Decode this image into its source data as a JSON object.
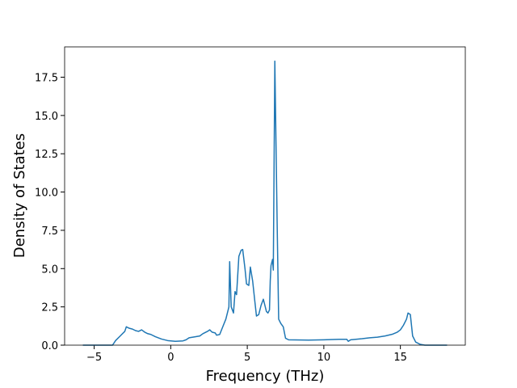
{
  "chart_data": {
    "type": "line",
    "xlabel": "Frequency (THz)",
    "ylabel": "Density of States",
    "xlim": [
      -6.93,
      19.24
    ],
    "ylim": [
      0,
      19.48
    ],
    "xticks": [
      {
        "value": -5,
        "label": "−5"
      },
      0,
      5,
      10,
      15
    ],
    "yticks": [
      {
        "value": 0,
        "label": "0.0"
      },
      {
        "value": 2.5,
        "label": "2.5"
      },
      {
        "value": 5,
        "label": "5.0"
      },
      {
        "value": 7.5,
        "label": "7.5"
      },
      {
        "value": 10,
        "label": "10.0"
      },
      {
        "value": 12.5,
        "label": "12.5"
      },
      {
        "value": 15,
        "label": "15.0"
      },
      {
        "value": 17.5,
        "label": "17.5"
      }
    ],
    "series": [
      {
        "color": "#1f77b4",
        "x": [
          -5.74,
          -3.8,
          -3.6,
          -3.3,
          -3.0,
          -2.9,
          -2.7,
          -2.5,
          -2.3,
          -2.1,
          -1.9,
          -1.7,
          -1.5,
          -1.3,
          -1.0,
          -0.6,
          -0.2,
          0.3,
          0.8,
          1.0,
          1.2,
          1.6,
          1.9,
          2.1,
          2.4,
          2.55,
          2.7,
          2.9,
          3.0,
          3.2,
          3.4,
          3.6,
          3.8,
          3.85,
          3.95,
          4.1,
          4.2,
          4.3,
          4.45,
          4.6,
          4.7,
          4.85,
          4.95,
          5.1,
          5.2,
          5.35,
          5.5,
          5.6,
          5.75,
          5.9,
          6.05,
          6.15,
          6.25,
          6.35,
          6.45,
          6.5,
          6.55,
          6.65,
          6.7,
          6.8,
          6.95,
          7.05,
          7.2,
          7.35,
          7.5,
          7.7,
          9.0,
          10.0,
          11.0,
          11.5,
          11.6,
          11.75,
          12.5,
          13.0,
          13.5,
          14.0,
          14.5,
          14.8,
          15.0,
          15.2,
          15.4,
          15.5,
          15.65,
          15.8,
          16.0,
          16.3,
          16.6,
          18.05
        ],
        "values": [
          0,
          0,
          0.3,
          0.6,
          0.9,
          1.2,
          1.1,
          1.05,
          0.95,
          0.9,
          1.0,
          0.85,
          0.75,
          0.7,
          0.55,
          0.4,
          0.3,
          0.25,
          0.28,
          0.35,
          0.48,
          0.55,
          0.6,
          0.75,
          0.9,
          1.0,
          0.85,
          0.8,
          0.65,
          0.7,
          1.2,
          1.7,
          2.5,
          5.45,
          2.5,
          2.1,
          3.5,
          3.3,
          5.8,
          6.2,
          6.25,
          5.0,
          4.0,
          3.9,
          5.1,
          4.2,
          2.8,
          1.9,
          2.0,
          2.6,
          3.0,
          2.6,
          2.2,
          2.1,
          2.3,
          4.2,
          5.2,
          5.6,
          4.9,
          18.55,
          8.0,
          1.7,
          1.4,
          1.2,
          0.45,
          0.35,
          0.33,
          0.35,
          0.38,
          0.38,
          0.25,
          0.35,
          0.42,
          0.48,
          0.52,
          0.6,
          0.72,
          0.85,
          1.0,
          1.3,
          1.7,
          2.1,
          2.0,
          0.6,
          0.2,
          0.05,
          0,
          0
        ]
      }
    ]
  }
}
